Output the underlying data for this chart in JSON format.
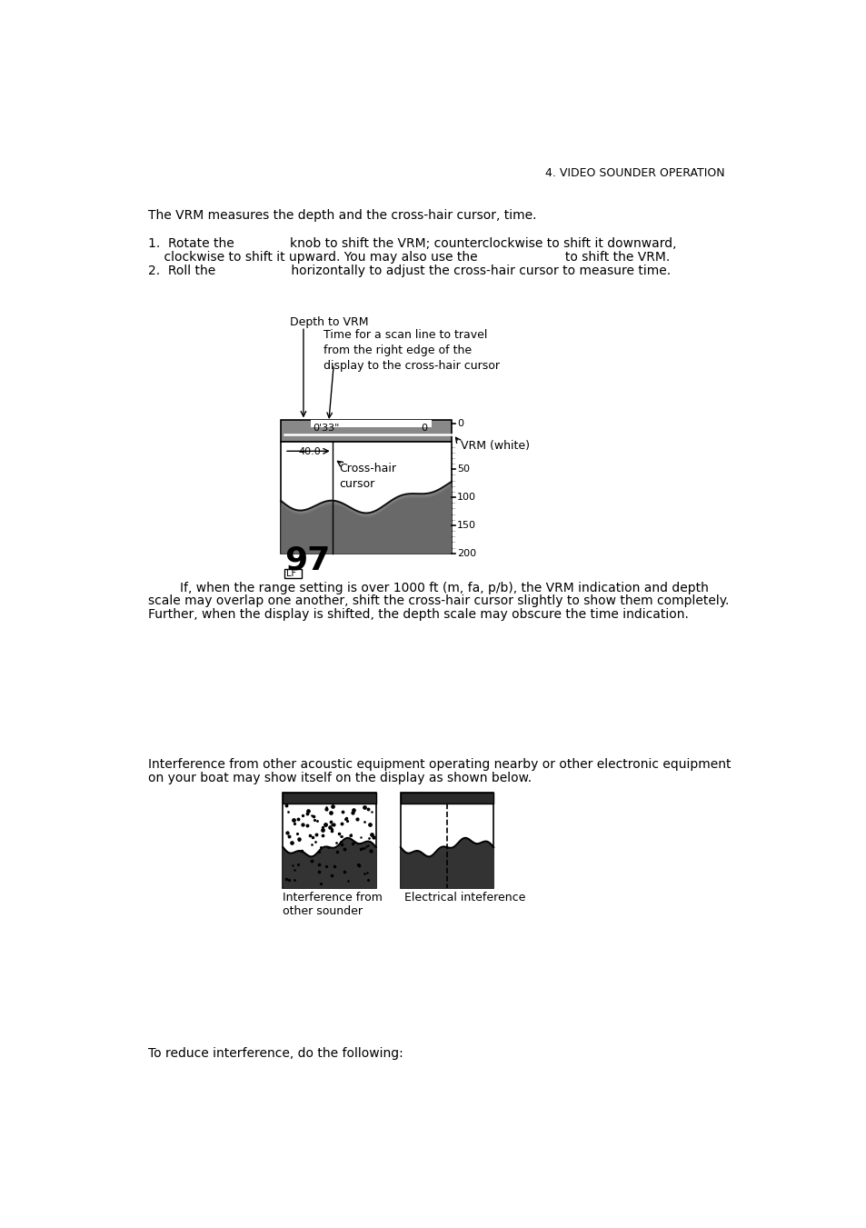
{
  "page_header": "4. VIDEO SOUNDER OPERATION",
  "bg_color": "#ffffff",
  "text_color": "#000000",
  "font_family": "DejaVu Sans",
  "para1": "The VRM measures the depth and the cross-hair cursor, time.",
  "item1_line1": "1.  Rotate the              knob to shift the VRM; counterclockwise to shift it downward,",
  "item1_line2": "    clockwise to shift it upward. You may also use the                      to shift the VRM.",
  "item2_line1": "2.  Roll the                   horizontally to adjust the cross-hair cursor to measure time.",
  "label_depth_to_vrm": "Depth to VRM",
  "label_time_scan": "Time for a scan line to travel\nfrom the right edge of the\ndisplay to the cross-hair cursor",
  "label_crosshair": "Cross-hair\ncursor",
  "label_vrm_white": "VRM (white)",
  "label_033": "0'33\"",
  "label_0": "0",
  "label_40": "40.0",
  "label_50": "50",
  "label_100": "100",
  "label_150": "150",
  "label_200": "200",
  "label_97": "97",
  "label_lf": "LF",
  "para2_indent": "        If, when the range setting is over 1000 ft (m, fa, p/b), the VRM indication and depth\nscale may overlap one another, shift the cross-hair cursor slightly to show them completely.\nFurther, when the display is shifted, the depth scale may obscure the time indication.",
  "para3_line1": "Interference from other acoustic equipment operating nearby or other electronic equipment",
  "para3_line2": "on your boat may show itself on the display as shown below.",
  "label_interference_sounder": "Interference from\nother sounder",
  "label_interference_electrical": "Electrical inteference",
  "para4": "To reduce interference, do the following:"
}
